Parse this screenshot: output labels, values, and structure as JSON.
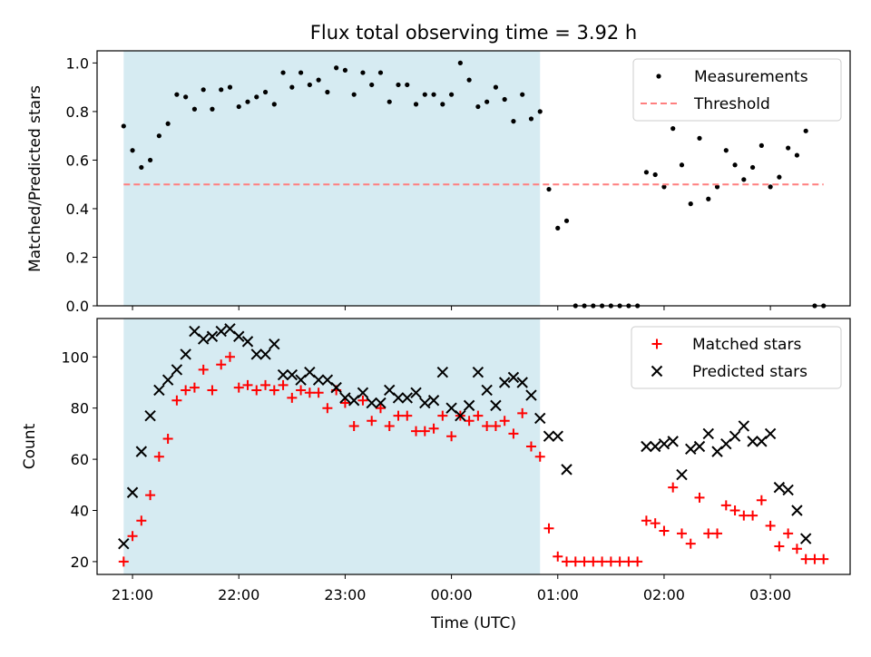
{
  "chart_data": [
    {
      "type": "scatter",
      "title": "Flux total observing time = 3.92 h",
      "ylabel": "Matched/Predicted stars",
      "ylim": [
        0,
        1.05
      ],
      "yticks": [
        "0.0",
        "0.2",
        "0.4",
        "0.6",
        "0.8",
        "1.0"
      ],
      "shaded_interval": [
        "20:55",
        "00:50"
      ],
      "legend_position": "top-right",
      "series": [
        {
          "name": "Measurements",
          "marker": "dot",
          "color": "#000000",
          "points": [
            [
              "20:55",
              0.74
            ],
            [
              "21:00",
              0.64
            ],
            [
              "21:05",
              0.57
            ],
            [
              "21:10",
              0.6
            ],
            [
              "21:15",
              0.7
            ],
            [
              "21:20",
              0.75
            ],
            [
              "21:25",
              0.87
            ],
            [
              "21:30",
              0.86
            ],
            [
              "21:35",
              0.81
            ],
            [
              "21:40",
              0.89
            ],
            [
              "21:45",
              0.81
            ],
            [
              "21:50",
              0.89
            ],
            [
              "21:55",
              0.9
            ],
            [
              "22:00",
              0.82
            ],
            [
              "22:05",
              0.84
            ],
            [
              "22:10",
              0.86
            ],
            [
              "22:15",
              0.88
            ],
            [
              "22:20",
              0.83
            ],
            [
              "22:25",
              0.96
            ],
            [
              "22:30",
              0.9
            ],
            [
              "22:35",
              0.96
            ],
            [
              "22:40",
              0.91
            ],
            [
              "22:45",
              0.93
            ],
            [
              "22:50",
              0.88
            ],
            [
              "22:55",
              0.98
            ],
            [
              "23:00",
              0.97
            ],
            [
              "23:05",
              0.87
            ],
            [
              "23:10",
              0.96
            ],
            [
              "23:15",
              0.91
            ],
            [
              "23:20",
              0.96
            ],
            [
              "23:25",
              0.84
            ],
            [
              "23:30",
              0.91
            ],
            [
              "23:35",
              0.91
            ],
            [
              "23:40",
              0.83
            ],
            [
              "23:45",
              0.87
            ],
            [
              "23:50",
              0.87
            ],
            [
              "23:55",
              0.83
            ],
            [
              "00:00",
              0.87
            ],
            [
              "00:05",
              1.0
            ],
            [
              "00:10",
              0.93
            ],
            [
              "00:15",
              0.82
            ],
            [
              "00:20",
              0.84
            ],
            [
              "00:25",
              0.9
            ],
            [
              "00:30",
              0.85
            ],
            [
              "00:35",
              0.76
            ],
            [
              "00:40",
              0.87
            ],
            [
              "00:45",
              0.77
            ],
            [
              "00:50",
              0.8
            ],
            [
              "00:55",
              0.48
            ],
            [
              "01:00",
              0.32
            ],
            [
              "01:05",
              0.35
            ],
            [
              "01:10",
              0.0
            ],
            [
              "01:15",
              0.0
            ],
            [
              "01:20",
              0.0
            ],
            [
              "01:25",
              0.0
            ],
            [
              "01:30",
              0.0
            ],
            [
              "01:35",
              0.0
            ],
            [
              "01:40",
              0.0
            ],
            [
              "01:45",
              0.0
            ],
            [
              "01:50",
              0.55
            ],
            [
              "01:55",
              0.54
            ],
            [
              "02:00",
              0.49
            ],
            [
              "02:05",
              0.73
            ],
            [
              "02:10",
              0.58
            ],
            [
              "02:15",
              0.42
            ],
            [
              "02:20",
              0.69
            ],
            [
              "02:25",
              0.44
            ],
            [
              "02:30",
              0.49
            ],
            [
              "02:35",
              0.64
            ],
            [
              "02:40",
              0.58
            ],
            [
              "02:45",
              0.52
            ],
            [
              "02:50",
              0.57
            ],
            [
              "02:55",
              0.66
            ],
            [
              "03:00",
              0.49
            ],
            [
              "03:05",
              0.53
            ],
            [
              "03:10",
              0.65
            ],
            [
              "03:15",
              0.62
            ],
            [
              "03:20",
              0.72
            ],
            [
              "03:25",
              0.0
            ],
            [
              "03:30",
              0.0
            ]
          ]
        },
        {
          "name": "Threshold",
          "marker": "dashed-line",
          "color": "#ff7f7f",
          "points": [
            [
              "20:55",
              0.5
            ],
            [
              "03:30",
              0.5
            ]
          ]
        }
      ]
    },
    {
      "type": "scatter",
      "xlabel": "Time (UTC)",
      "ylabel": "Count",
      "ylim": [
        15,
        115
      ],
      "yticks": [
        "20",
        "40",
        "60",
        "80",
        "100"
      ],
      "xticks": [
        "21:00",
        "22:00",
        "23:00",
        "00:00",
        "01:00",
        "02:00",
        "03:00"
      ],
      "shaded_interval": [
        "20:55",
        "00:50"
      ],
      "legend_position": "top-right",
      "series": [
        {
          "name": "Matched stars",
          "marker": "plus",
          "color": "#ff0000",
          "points": [
            [
              "20:55",
              20
            ],
            [
              "21:00",
              30
            ],
            [
              "21:05",
              36
            ],
            [
              "21:10",
              46
            ],
            [
              "21:15",
              61
            ],
            [
              "21:20",
              68
            ],
            [
              "21:25",
              83
            ],
            [
              "21:30",
              87
            ],
            [
              "21:35",
              88
            ],
            [
              "21:40",
              95
            ],
            [
              "21:45",
              87
            ],
            [
              "21:50",
              97
            ],
            [
              "21:55",
              100
            ],
            [
              "22:00",
              88
            ],
            [
              "22:05",
              89
            ],
            [
              "22:10",
              87
            ],
            [
              "22:15",
              89
            ],
            [
              "22:20",
              87
            ],
            [
              "22:25",
              89
            ],
            [
              "22:30",
              84
            ],
            [
              "22:35",
              87
            ],
            [
              "22:40",
              86
            ],
            [
              "22:45",
              86
            ],
            [
              "22:50",
              80
            ],
            [
              "22:55",
              87
            ],
            [
              "23:00",
              82
            ],
            [
              "23:05",
              73
            ],
            [
              "23:10",
              83
            ],
            [
              "23:15",
              75
            ],
            [
              "23:20",
              80
            ],
            [
              "23:25",
              73
            ],
            [
              "23:30",
              77
            ],
            [
              "23:35",
              77
            ],
            [
              "23:40",
              71
            ],
            [
              "23:45",
              71
            ],
            [
              "23:50",
              72
            ],
            [
              "23:55",
              77
            ],
            [
              "00:00",
              69
            ],
            [
              "00:05",
              77
            ],
            [
              "00:10",
              75
            ],
            [
              "00:15",
              77
            ],
            [
              "00:20",
              73
            ],
            [
              "00:25",
              73
            ],
            [
              "00:30",
              75
            ],
            [
              "00:35",
              70
            ],
            [
              "00:40",
              78
            ],
            [
              "00:45",
              65
            ],
            [
              "00:50",
              61
            ],
            [
              "00:55",
              33
            ],
            [
              "01:00",
              22
            ],
            [
              "01:05",
              20
            ],
            [
              "01:10",
              20
            ],
            [
              "01:15",
              20
            ],
            [
              "01:20",
              20
            ],
            [
              "01:25",
              20
            ],
            [
              "01:30",
              20
            ],
            [
              "01:35",
              20
            ],
            [
              "01:40",
              20
            ],
            [
              "01:45",
              20
            ],
            [
              "01:50",
              36
            ],
            [
              "01:55",
              35
            ],
            [
              "02:00",
              32
            ],
            [
              "02:05",
              49
            ],
            [
              "02:10",
              31
            ],
            [
              "02:15",
              27
            ],
            [
              "02:20",
              45
            ],
            [
              "02:25",
              31
            ],
            [
              "02:30",
              31
            ],
            [
              "02:35",
              42
            ],
            [
              "02:40",
              40
            ],
            [
              "02:45",
              38
            ],
            [
              "02:50",
              38
            ],
            [
              "02:55",
              44
            ],
            [
              "03:00",
              34
            ],
            [
              "03:05",
              26
            ],
            [
              "03:10",
              31
            ],
            [
              "03:15",
              25
            ],
            [
              "03:20",
              21
            ],
            [
              "03:25",
              21
            ],
            [
              "03:30",
              21
            ]
          ]
        },
        {
          "name": "Predicted stars",
          "marker": "x",
          "color": "#000000",
          "points": [
            [
              "20:55",
              27
            ],
            [
              "21:00",
              47
            ],
            [
              "21:05",
              63
            ],
            [
              "21:10",
              77
            ],
            [
              "21:15",
              87
            ],
            [
              "21:20",
              91
            ],
            [
              "21:25",
              95
            ],
            [
              "21:30",
              101
            ],
            [
              "21:35",
              110
            ],
            [
              "21:40",
              107
            ],
            [
              "21:45",
              108
            ],
            [
              "21:50",
              110
            ],
            [
              "21:55",
              111
            ],
            [
              "22:00",
              108
            ],
            [
              "22:05",
              106
            ],
            [
              "22:10",
              101
            ],
            [
              "22:15",
              101
            ],
            [
              "22:20",
              105
            ],
            [
              "22:25",
              93
            ],
            [
              "22:30",
              93
            ],
            [
              "22:35",
              91
            ],
            [
              "22:40",
              94
            ],
            [
              "22:45",
              91
            ],
            [
              "22:50",
              91
            ],
            [
              "22:55",
              88
            ],
            [
              "23:00",
              84
            ],
            [
              "23:05",
              83
            ],
            [
              "23:10",
              86
            ],
            [
              "23:15",
              82
            ],
            [
              "23:20",
              82
            ],
            [
              "23:25",
              87
            ],
            [
              "23:30",
              84
            ],
            [
              "23:35",
              84
            ],
            [
              "23:40",
              86
            ],
            [
              "23:45",
              82
            ],
            [
              "23:50",
              83
            ],
            [
              "23:55",
              94
            ],
            [
              "00:00",
              80
            ],
            [
              "00:05",
              77
            ],
            [
              "00:10",
              81
            ],
            [
              "00:15",
              94
            ],
            [
              "00:20",
              87
            ],
            [
              "00:25",
              81
            ],
            [
              "00:30",
              90
            ],
            [
              "00:35",
              92
            ],
            [
              "00:40",
              90
            ],
            [
              "00:45",
              85
            ],
            [
              "00:50",
              76
            ],
            [
              "00:55",
              69
            ],
            [
              "01:00",
              69
            ],
            [
              "01:05",
              56
            ],
            [
              "01:50",
              65
            ],
            [
              "01:55",
              65
            ],
            [
              "02:00",
              66
            ],
            [
              "02:05",
              67
            ],
            [
              "02:10",
              54
            ],
            [
              "02:15",
              64
            ],
            [
              "02:20",
              65
            ],
            [
              "02:25",
              70
            ],
            [
              "02:30",
              63
            ],
            [
              "02:35",
              66
            ],
            [
              "02:40",
              69
            ],
            [
              "02:45",
              73
            ],
            [
              "02:50",
              67
            ],
            [
              "02:55",
              67
            ],
            [
              "03:00",
              70
            ],
            [
              "03:05",
              49
            ],
            [
              "03:10",
              48
            ],
            [
              "03:15",
              40
            ],
            [
              "03:20",
              29
            ]
          ]
        }
      ]
    }
  ]
}
